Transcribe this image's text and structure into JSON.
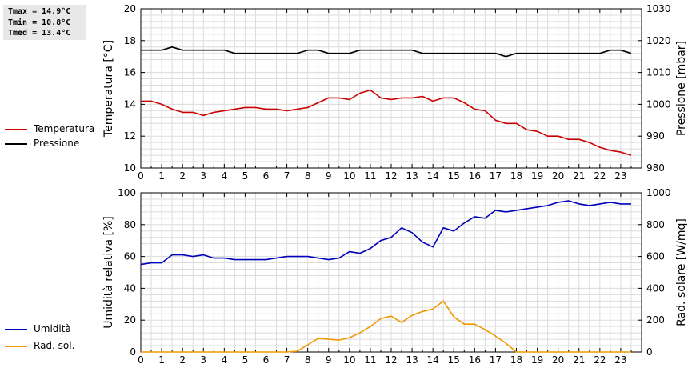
{
  "stats": {
    "tmax": "Tmax = 14.9°C",
    "tmin": "Tmin = 10.8°C",
    "tmed": "Tmed = 13.4°C"
  },
  "legend_top": [
    {
      "label": "Temperatura",
      "color": "#cc0000"
    },
    {
      "label": "Pressione",
      "color": "#000000"
    }
  ],
  "legend_bottom": [
    {
      "label": "Umidità",
      "color": "#0000bb"
    },
    {
      "label": "Rad. sol.",
      "color": "#ee9900"
    }
  ],
  "chart_data": [
    {
      "type": "line",
      "xlabel": "",
      "x_ticks": [
        "0",
        "1",
        "2",
        "3",
        "4",
        "5",
        "6",
        "7",
        "8",
        "9",
        "10",
        "11",
        "12",
        "13",
        "14",
        "15",
        "16",
        "17",
        "18",
        "19",
        "20",
        "21",
        "22",
        "23"
      ],
      "xlim": [
        0,
        24
      ],
      "ylabel": "Temperatura [°C]",
      "ylim": [
        10,
        20
      ],
      "y_ticks": [
        "10",
        "12",
        "14",
        "16",
        "18",
        "20"
      ],
      "y2label": "Pressione [mbar]",
      "y2lim": [
        980,
        1030
      ],
      "y2_ticks": [
        "980",
        "990",
        "1000",
        "1010",
        "1020",
        "1030"
      ],
      "grid": true,
      "series": [
        {
          "name": "Temperatura",
          "color": "#cc0000",
          "axis": "left",
          "x": [
            0,
            0.5,
            1,
            1.5,
            2,
            2.5,
            3,
            3.5,
            4,
            4.5,
            5,
            5.5,
            6,
            6.5,
            7,
            7.5,
            8,
            8.5,
            9,
            9.5,
            10,
            10.5,
            11,
            11.5,
            12,
            12.5,
            13,
            13.5,
            14,
            14.5,
            15,
            15.5,
            16,
            16.5,
            17,
            17.5,
            18,
            18.5,
            19,
            19.5,
            20,
            20.5,
            21,
            21.5,
            22,
            22.5,
            23,
            23.5
          ],
          "values": [
            14.2,
            14.2,
            14.0,
            13.7,
            13.5,
            13.5,
            13.3,
            13.5,
            13.6,
            13.7,
            13.8,
            13.8,
            13.7,
            13.7,
            13.6,
            13.7,
            13.8,
            14.1,
            14.4,
            14.4,
            14.3,
            14.7,
            14.9,
            14.4,
            14.3,
            14.4,
            14.4,
            14.5,
            14.2,
            14.4,
            14.4,
            14.1,
            13.7,
            13.6,
            13.0,
            12.8,
            12.8,
            12.4,
            12.3,
            12.0,
            12.0,
            11.8,
            11.8,
            11.6,
            11.3,
            11.1,
            11.0,
            10.8
          ]
        },
        {
          "name": "Pressione",
          "color": "#000000",
          "axis": "right",
          "x": [
            0,
            0.5,
            1,
            1.5,
            2,
            2.5,
            3,
            3.5,
            4,
            4.5,
            5,
            5.5,
            6,
            6.5,
            7,
            7.5,
            8,
            8.5,
            9,
            9.5,
            10,
            10.5,
            11,
            11.5,
            12,
            12.5,
            13,
            13.5,
            14,
            14.5,
            15,
            15.5,
            16,
            16.5,
            17,
            17.5,
            18,
            18.5,
            19,
            19.5,
            20,
            20.5,
            21,
            21.5,
            22,
            22.5,
            23,
            23.5
          ],
          "values": [
            1017,
            1017,
            1017,
            1018,
            1017,
            1017,
            1017,
            1017,
            1017,
            1016,
            1016,
            1016,
            1016,
            1016,
            1016,
            1016,
            1017,
            1017,
            1016,
            1016,
            1016,
            1017,
            1017,
            1017,
            1017,
            1017,
            1017,
            1016,
            1016,
            1016,
            1016,
            1016,
            1016,
            1016,
            1016,
            1015,
            1016,
            1016,
            1016,
            1016,
            1016,
            1016,
            1016,
            1016,
            1016,
            1017,
            1017,
            1016
          ]
        }
      ]
    },
    {
      "type": "line",
      "xlabel": "",
      "x_ticks": [
        "0",
        "1",
        "2",
        "3",
        "4",
        "5",
        "6",
        "7",
        "8",
        "9",
        "10",
        "11",
        "12",
        "13",
        "14",
        "15",
        "16",
        "17",
        "18",
        "19",
        "20",
        "21",
        "22",
        "23"
      ],
      "xlim": [
        0,
        24
      ],
      "ylabel": "Umidità relativa [%]",
      "ylim": [
        0,
        100
      ],
      "y_ticks": [
        "0",
        "20",
        "40",
        "60",
        "80",
        "100"
      ],
      "y2label": "Rad. solare [W/mq]",
      "y2lim": [
        0,
        1000
      ],
      "y2_ticks": [
        "0",
        "200",
        "400",
        "600",
        "800",
        "1000"
      ],
      "grid": true,
      "series": [
        {
          "name": "Umidità",
          "color": "#0000bb",
          "axis": "left",
          "x": [
            0,
            0.5,
            1,
            1.5,
            2,
            2.5,
            3,
            3.5,
            4,
            4.5,
            5,
            5.5,
            6,
            6.5,
            7,
            7.5,
            8,
            8.5,
            9,
            9.5,
            10,
            10.5,
            11,
            11.5,
            12,
            12.5,
            13,
            13.5,
            14,
            14.5,
            15,
            15.5,
            16,
            16.5,
            17,
            17.5,
            18,
            18.5,
            19,
            19.5,
            20,
            20.5,
            21,
            21.5,
            22,
            22.5,
            23,
            23.5
          ],
          "values": [
            55,
            56,
            56,
            61,
            61,
            60,
            61,
            59,
            59,
            58,
            58,
            58,
            58,
            59,
            60,
            60,
            60,
            59,
            58,
            59,
            63,
            62,
            65,
            70,
            72,
            78,
            75,
            69,
            66,
            78,
            76,
            81,
            85,
            84,
            89,
            88,
            89,
            90,
            91,
            92,
            94,
            95,
            93,
            92,
            93,
            94,
            93,
            93
          ]
        },
        {
          "name": "Rad. sol.",
          "color": "#ee9900",
          "axis": "right",
          "x": [
            0,
            0.5,
            1,
            1.5,
            2,
            2.5,
            3,
            3.5,
            4,
            4.5,
            5,
            5.5,
            6,
            6.5,
            7,
            7.5,
            8,
            8.5,
            9,
            9.5,
            10,
            10.5,
            11,
            11.5,
            12,
            12.5,
            13,
            13.5,
            14,
            14.5,
            15,
            15.5,
            16,
            16.5,
            17,
            17.5,
            18,
            18.5,
            19,
            19.5,
            20,
            20.5,
            21,
            21.5,
            22,
            22.5,
            23,
            23.5
          ],
          "values": [
            0,
            0,
            0,
            0,
            0,
            0,
            0,
            0,
            0,
            0,
            0,
            0,
            0,
            0,
            0,
            5,
            45,
            85,
            80,
            75,
            90,
            120,
            160,
            210,
            225,
            185,
            230,
            255,
            270,
            320,
            220,
            175,
            175,
            140,
            100,
            55,
            0,
            0,
            0,
            0,
            0,
            0,
            0,
            0,
            0,
            0,
            0,
            0
          ]
        }
      ]
    }
  ]
}
